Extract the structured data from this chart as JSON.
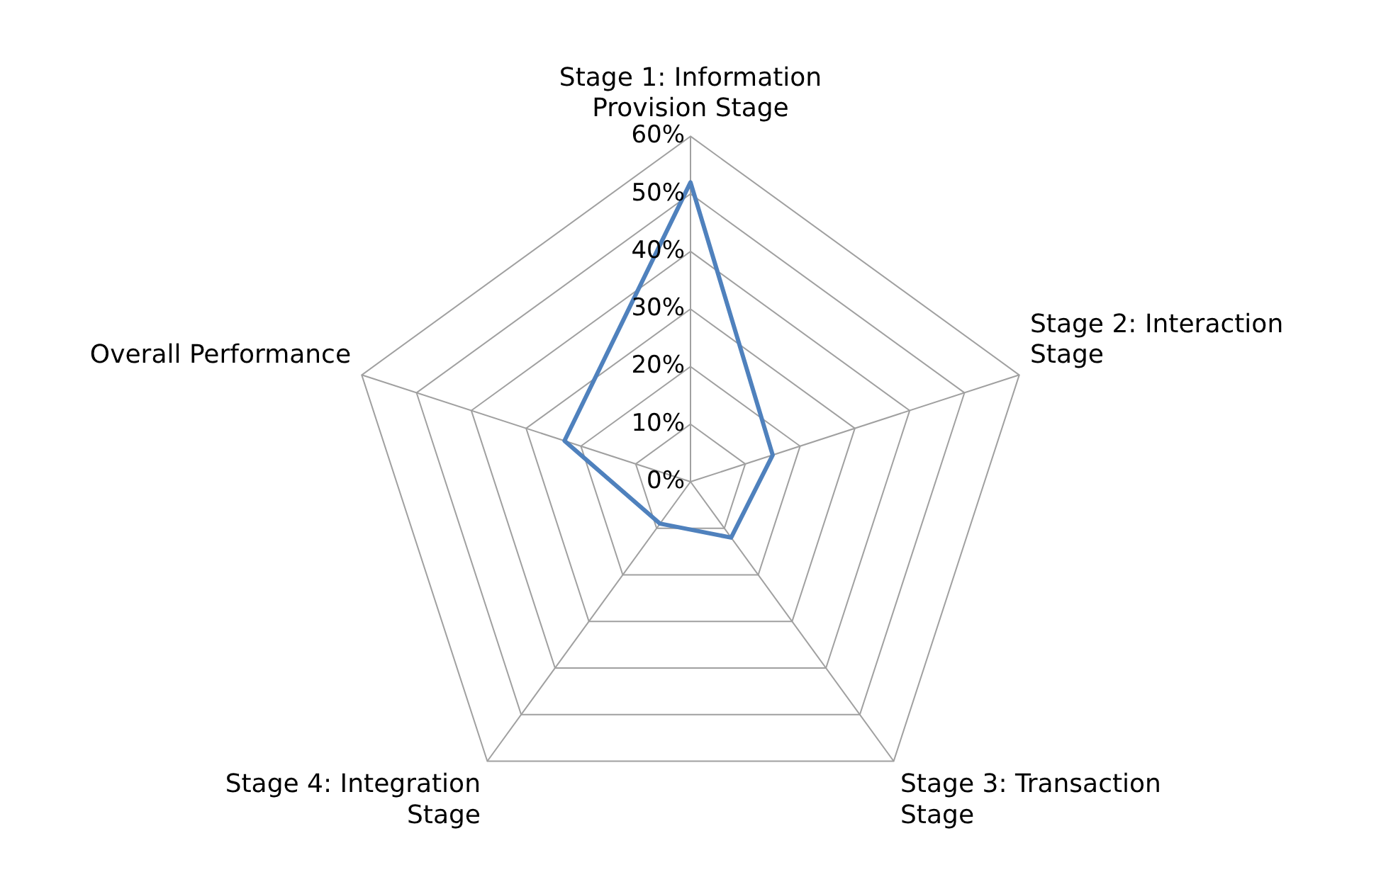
{
  "chart_data": {
    "type": "radar",
    "categories": [
      "Stage 1: Information Provision Stage",
      "Stage 2: Interaction Stage",
      "Stage 3: Transaction Stage",
      "Stage 4: Integration Stage",
      "Overall Performance"
    ],
    "series": [
      {
        "color": "#4f81bd",
        "values": [
          52,
          15,
          12,
          9,
          23
        ]
      }
    ],
    "ylim": [
      0,
      60
    ],
    "yticks": [
      {
        "value": 0,
        "label": "0%"
      },
      {
        "value": 10,
        "label": "10%"
      },
      {
        "value": 20,
        "label": "20%"
      },
      {
        "value": 30,
        "label": "30%"
      },
      {
        "value": 40,
        "label": "40%"
      },
      {
        "value": 50,
        "label": "50%"
      },
      {
        "value": 60,
        "label": "60%"
      }
    ],
    "grid": true,
    "legend": false,
    "marker": "none"
  }
}
